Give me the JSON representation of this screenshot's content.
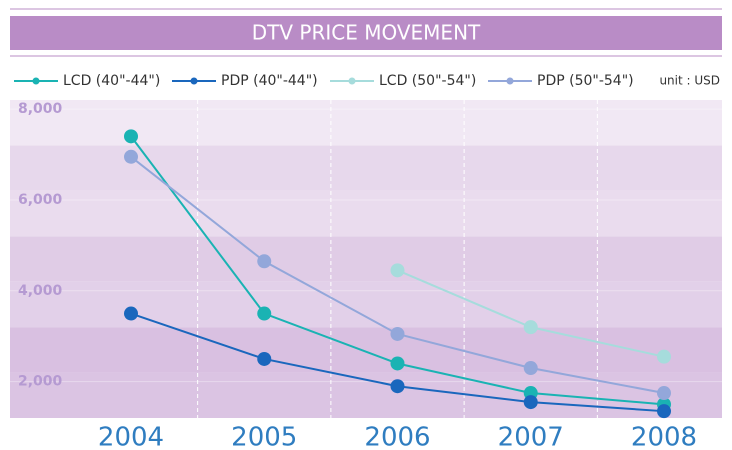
{
  "chart_data": {
    "type": "line",
    "title": "DTV PRICE MOVEMENT",
    "unit": "unit : USD",
    "categories": [
      "2004",
      "2005",
      "2006",
      "2007",
      "2008"
    ],
    "series": [
      {
        "name": "LCD (40\"-44\")",
        "color": "#1ab3b3",
        "values": [
          7400,
          3500,
          2400,
          1750,
          1500
        ]
      },
      {
        "name": "PDP (40\"-44\")",
        "color": "#1a67bd",
        "values": [
          3500,
          2500,
          1900,
          1550,
          1350
        ]
      },
      {
        "name": "LCD (50\"-54\")",
        "color": "#a6dcdc",
        "values": [
          null,
          null,
          4450,
          3200,
          2550
        ]
      },
      {
        "name": "PDP (50\"-54\")",
        "color": "#93a7da",
        "values": [
          6950,
          4650,
          3050,
          2300,
          1750
        ]
      }
    ],
    "ylim": [
      1200,
      8200
    ],
    "yticks": [
      {
        "value": 2000,
        "label": "2,000"
      },
      {
        "value": 4000,
        "label": "4,000"
      },
      {
        "value": 6000,
        "label": "6,000"
      },
      {
        "value": 8000,
        "label": "8,000"
      }
    ],
    "grid": true
  }
}
